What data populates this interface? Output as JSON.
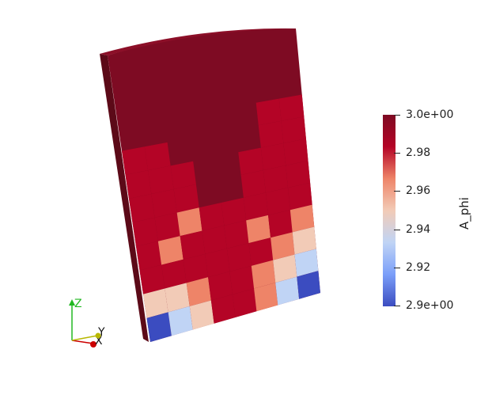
{
  "scalar_bar": {
    "title": "A_phi",
    "range": [
      2.9,
      3.0
    ],
    "tick_labels": [
      "3.0e+00",
      "2.98",
      "2.96",
      "2.94",
      "2.92",
      "2.9e+00"
    ],
    "tick_values": [
      3.0,
      2.98,
      2.96,
      2.94,
      2.92,
      2.9
    ],
    "colormap_colors": [
      "#3b4cc0",
      "#7b9ff9",
      "#c0d4f5",
      "#f2cbb7",
      "#ee8468",
      "#b40426",
      "#7e0b23"
    ]
  },
  "orientation_axes": {
    "labels": [
      "Z",
      "Y",
      "X"
    ],
    "colors": {
      "Z": "#22b822",
      "Y": "#b8b800",
      "X": "#cc0000"
    }
  },
  "mesh": {
    "scalar": "A_phi",
    "face_color_main": "#7e0b23",
    "side_color": "#5a0818"
  }
}
